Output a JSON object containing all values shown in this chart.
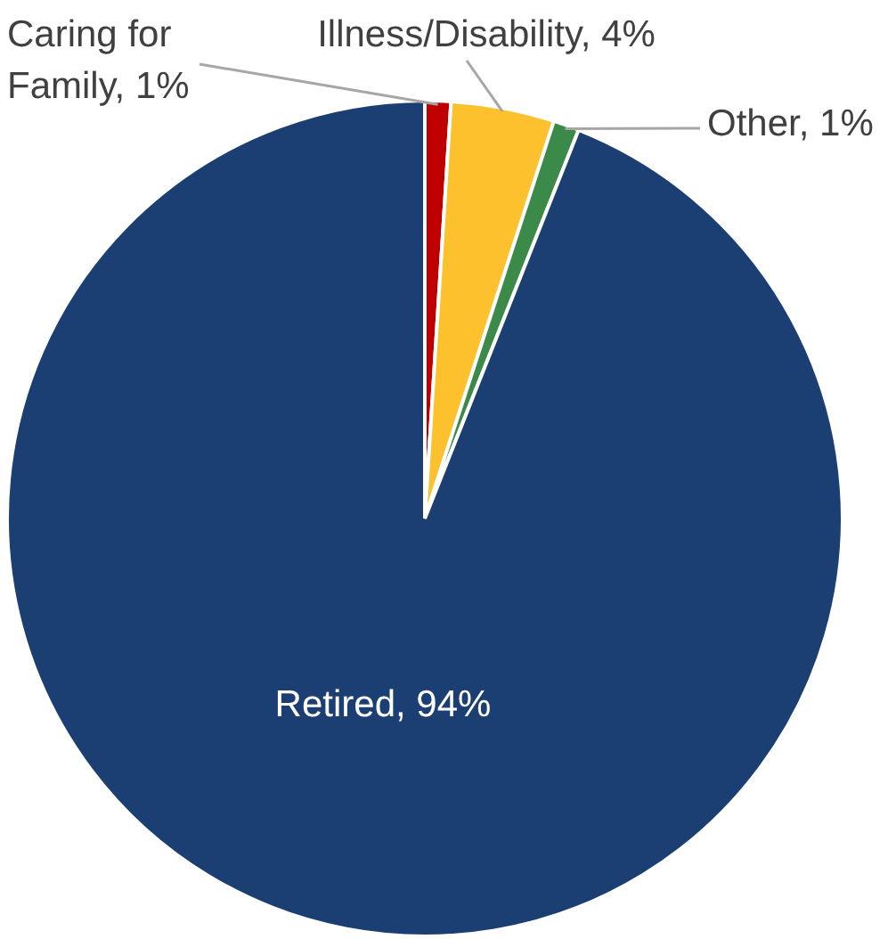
{
  "chart_data": {
    "type": "pie",
    "categories": [
      "Caring for Family",
      "Illness/Disability",
      "Other",
      "Retired"
    ],
    "values": [
      1,
      4,
      1,
      94
    ],
    "value_labels": [
      "1%",
      "4%",
      "1%",
      "94%"
    ],
    "colors": [
      "#c00000",
      "#fcc12d",
      "#3b8a4a",
      "#1b3f73"
    ],
    "legend": false
  }
}
